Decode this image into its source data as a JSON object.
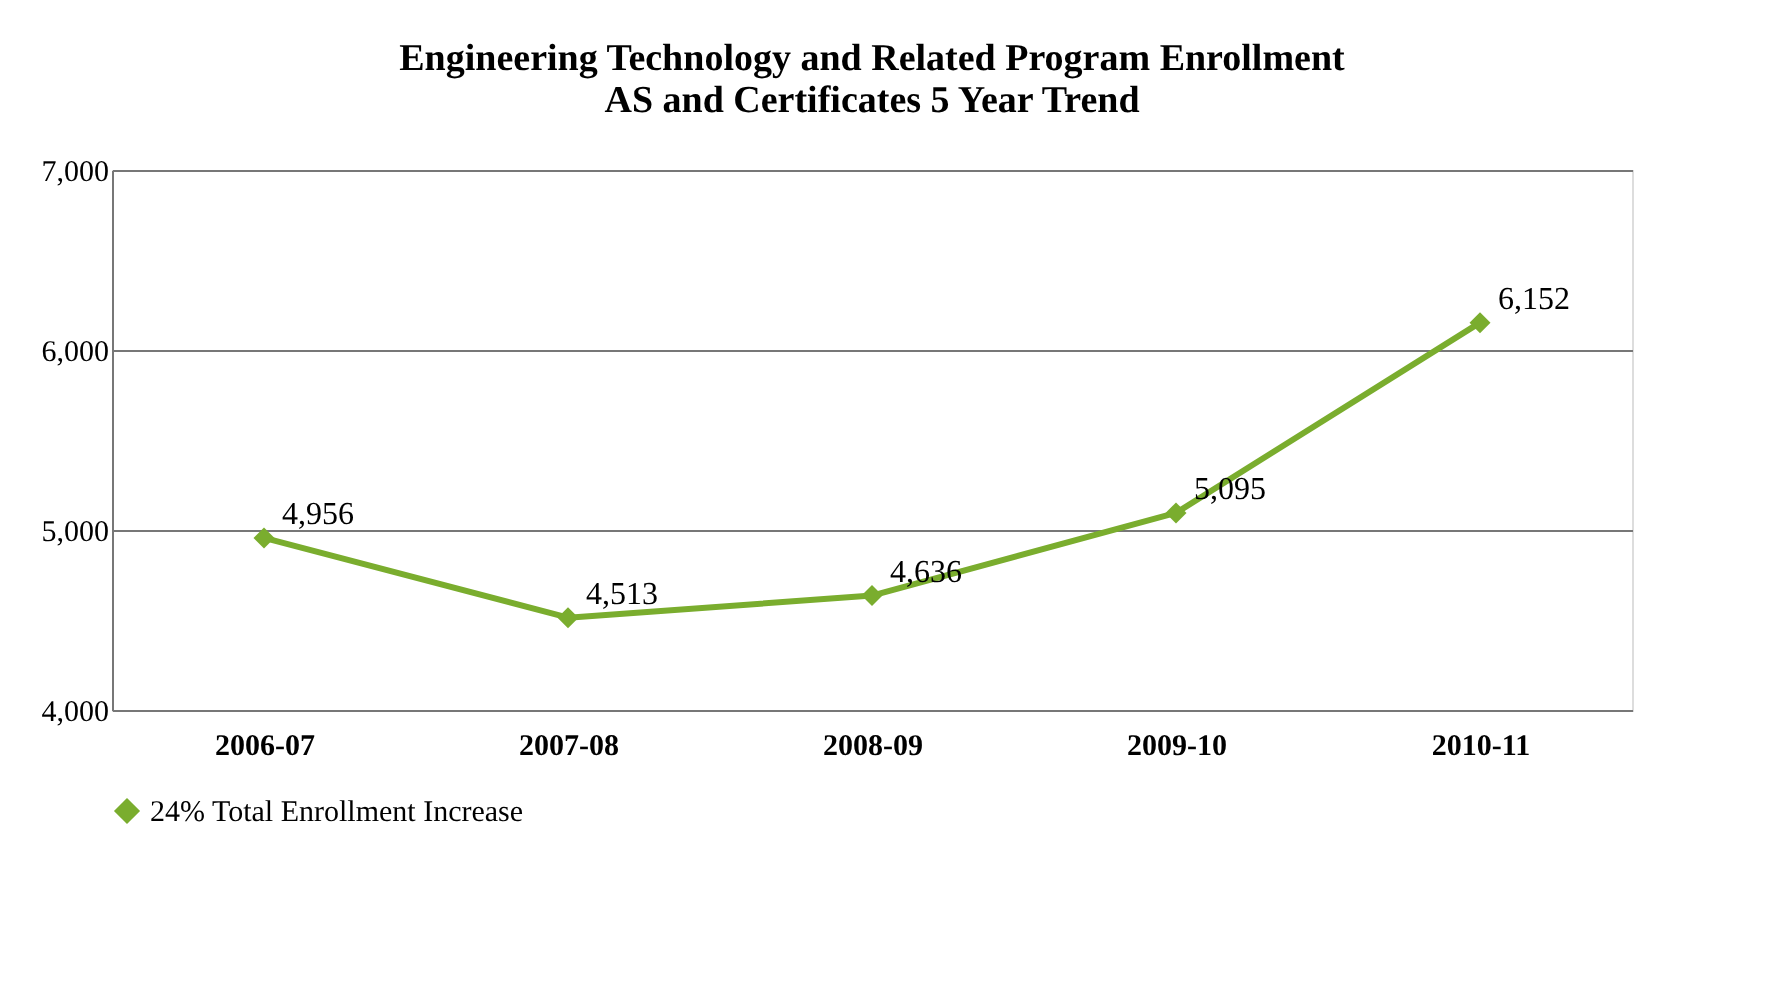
{
  "chart_data": {
    "type": "line",
    "title": [
      "Engineering Technology and Related Program Enrollment",
      "AS and Certificates 5 Year Trend"
    ],
    "categories": [
      "2006-07",
      "2007-08",
      "2008-09",
      "2009-10",
      "2010-11"
    ],
    "series": [
      {
        "name": "24% Total Enrollment Increase",
        "color": "#7aad2e",
        "values": [
          4956,
          4513,
          4636,
          5095,
          6152
        ],
        "value_labels": [
          "4,956",
          "4,513",
          "4,636",
          "5,095",
          "6,152"
        ]
      }
    ],
    "ylim": [
      4000,
      7000
    ],
    "yticks": [
      {
        "value": 4000,
        "label": "4,000"
      },
      {
        "value": 5000,
        "label": "5,000"
      },
      {
        "value": 6000,
        "label": "6,000"
      },
      {
        "value": 7000,
        "label": "7,000"
      }
    ],
    "grid": "y",
    "legend": "bottom",
    "marker": "diamond",
    "line_style": "solid"
  }
}
